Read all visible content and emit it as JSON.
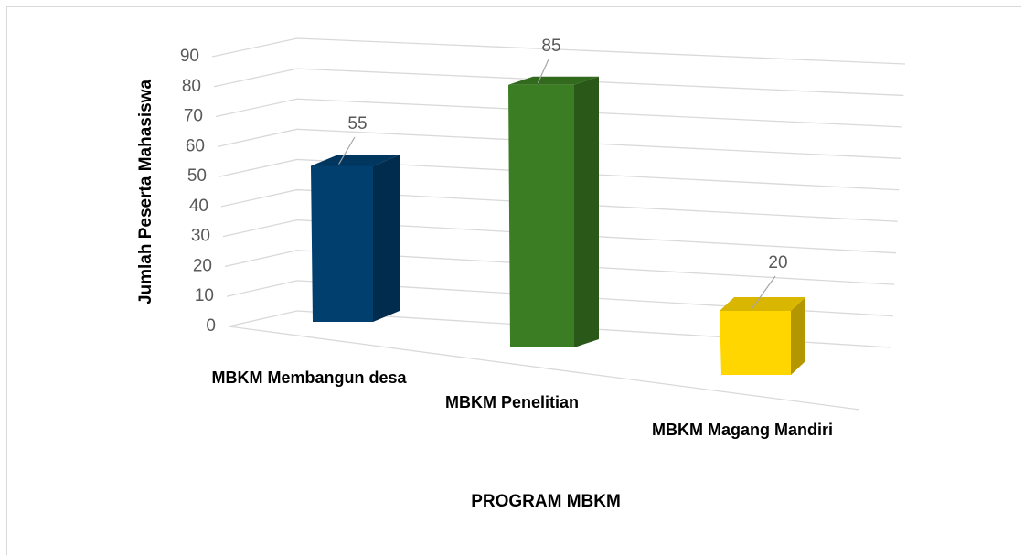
{
  "chart_data": {
    "type": "bar3d",
    "y_label": "Jumlah Peserta Mahasiswa",
    "x_label": "PROGRAM MBKM",
    "categories": [
      "MBKM Membangun desa",
      "MBKM Penelitian",
      "MBKM Magang Mandiri"
    ],
    "values": [
      55,
      85,
      20
    ],
    "colors": [
      "#013f6f",
      "#3a7d22",
      "#ffd600"
    ],
    "ylim": [
      0,
      90
    ],
    "yticks": [
      0,
      10,
      20,
      30,
      40,
      50,
      60,
      70,
      80,
      90
    ],
    "grid": true
  }
}
